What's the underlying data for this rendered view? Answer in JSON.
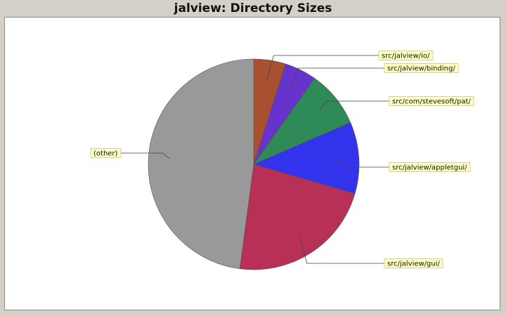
{
  "window": {
    "title": "jalview: Directory Sizes"
  },
  "colors": {
    "background": "#d4d0c8",
    "plot_background": "#ffffff",
    "label_fill": "#ffffc0"
  },
  "chart_data": {
    "type": "pie",
    "title": "jalview: Directory Sizes",
    "start_angle_deg": 90,
    "direction": "clockwise",
    "legend": "none",
    "slices": [
      {
        "label": "src/jalview/io/",
        "value": 4.9,
        "color": "#a8502f"
      },
      {
        "label": "src/jalview/binding/",
        "value": 4.9,
        "color": "#6633cc"
      },
      {
        "label": "src/com/stevesoft/pat/",
        "value": 8.7,
        "color": "#2e8b57"
      },
      {
        "label": "src/jalview/appletgui/",
        "value": 11.0,
        "color": "#3333ee"
      },
      {
        "label": "src/jalview/gui/",
        "value": 22.6,
        "color": "#b83055"
      },
      {
        "label": "(other)",
        "value": 47.9,
        "color": "#999999"
      }
    ]
  }
}
